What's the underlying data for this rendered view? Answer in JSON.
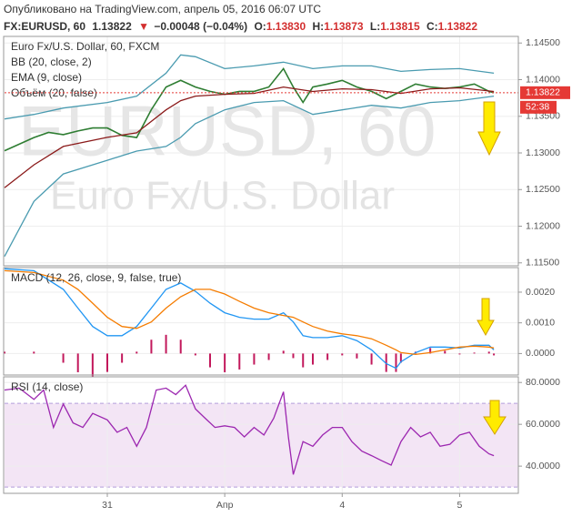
{
  "header": {
    "published": "Опубликовано на TradingView.com, апрель 05, 2016 06:07 UTC",
    "symbol": "FX:EURUSD, 60",
    "last": "1.13822",
    "change": "−0.00048 (−0.04%)",
    "ohlc": [
      {
        "label": "O:",
        "value": "1.13830"
      },
      {
        "label": "H:",
        "value": "1.13873"
      },
      {
        "label": "L:",
        "value": "1.13815"
      },
      {
        "label": "C:",
        "value": "1.13822"
      }
    ]
  },
  "chart_data": [
    {
      "type": "line",
      "title": "Euro Fx/U.S. Dollar, 60, FXCM",
      "indicators": [
        "BB (20, close, 2)",
        "EMA (9, close)",
        "Объём (20, false)"
      ],
      "watermark": [
        "EURUSD, 60",
        "Euro Fx/U.S. Dollar"
      ],
      "countdown": "52:38",
      "xlim": [
        -21,
        84
      ],
      "ylim": [
        1.1146,
        1.1459
      ],
      "yticks": [
        {
          "value": 1.145,
          "label": "1.14500"
        },
        {
          "value": 1.14,
          "label": "1.14000"
        },
        {
          "value": 1.135,
          "label": "1.13500"
        },
        {
          "value": 1.13,
          "label": "1.13000"
        },
        {
          "value": 1.125,
          "label": "1.12500"
        },
        {
          "value": 1.12,
          "label": "1.12000"
        },
        {
          "value": 1.115,
          "label": "1.11500"
        }
      ],
      "grid": true,
      "series": [
        {
          "kind": "line",
          "color": "#2e7d32",
          "x": [
            -21,
            -15,
            -12,
            -9,
            -6,
            -3,
            0,
            3,
            6,
            9,
            12,
            15,
            18,
            21,
            24,
            27,
            30,
            33,
            36,
            38,
            40,
            42,
            45,
            48,
            51,
            54,
            57,
            60,
            63,
            66,
            69,
            72,
            75,
            78,
            79
          ],
          "values": [
            1.1303,
            1.1321,
            1.1328,
            1.1325,
            1.133,
            1.1334,
            1.1334,
            1.1324,
            1.1321,
            1.1359,
            1.139,
            1.1399,
            1.139,
            1.1384,
            1.138,
            1.1384,
            1.1384,
            1.139,
            1.1415,
            1.139,
            1.1369,
            1.139,
            1.1394,
            1.1399,
            1.139,
            1.1384,
            1.1374,
            1.1384,
            1.1394,
            1.139,
            1.1388,
            1.139,
            1.1394,
            1.1384,
            1.13822
          ]
        },
        {
          "kind": "line",
          "color": "#4a9bb0",
          "x": [
            -21,
            -15,
            -9,
            0,
            6,
            12,
            15,
            18,
            24,
            30,
            36,
            42,
            48,
            54,
            60,
            66,
            72,
            79
          ],
          "values": [
            1.13463,
            1.13525,
            1.13613,
            1.13688,
            1.13775,
            1.14088,
            1.14338,
            1.14313,
            1.1415,
            1.14188,
            1.14238,
            1.1415,
            1.14188,
            1.14188,
            1.14113,
            1.14138,
            1.1415,
            1.14088
          ]
        },
        {
          "kind": "line",
          "color": "#4a9bb0",
          "x": [
            -21,
            -15,
            -9,
            0,
            6,
            12,
            15,
            18,
            24,
            30,
            36,
            42,
            48,
            54,
            60,
            66,
            72,
            79
          ],
          "values": [
            1.11588,
            1.12338,
            1.12713,
            1.129,
            1.13025,
            1.13088,
            1.13213,
            1.134,
            1.13588,
            1.13688,
            1.13713,
            1.13525,
            1.13588,
            1.1365,
            1.13613,
            1.13688,
            1.13713,
            1.13775
          ]
        },
        {
          "kind": "line",
          "color": "#8b1a1a",
          "x": [
            -21,
            -15,
            -9,
            0,
            6,
            12,
            15,
            18,
            24,
            30,
            36,
            42,
            48,
            54,
            60,
            66,
            72,
            79
          ],
          "values": [
            1.12525,
            1.12838,
            1.13088,
            1.13213,
            1.13275,
            1.13588,
            1.13713,
            1.13775,
            1.138,
            1.13813,
            1.139,
            1.13838,
            1.13875,
            1.13863,
            1.13813,
            1.13875,
            1.13888,
            1.13838
          ]
        }
      ]
    },
    {
      "type": "line",
      "title": "MACD (12, 26, close, 9, false, true)",
      "xlim": [
        -21,
        84
      ],
      "ylim": [
        -0.0007,
        0.0028
      ],
      "yticks": [
        {
          "value": 0.002,
          "label": "0.0020"
        },
        {
          "value": 0.001,
          "label": "0.0010"
        },
        {
          "value": 0,
          "label": "0.0000"
        }
      ],
      "grid": true,
      "x": [
        -21,
        -15,
        -9,
        -6,
        -3,
        0,
        3,
        6,
        9,
        12,
        15,
        18,
        21,
        24,
        27,
        30,
        33,
        36,
        38,
        40,
        42,
        45,
        48,
        51,
        54,
        57,
        59,
        60,
        63,
        66,
        69,
        72,
        75,
        78,
        79
      ],
      "series": [
        {
          "kind": "histogram",
          "color": "#c2185b",
          "values": [
            6e-05,
            6e-05,
            -0.0003,
            -0.00061,
            -0.00076,
            -0.0006,
            -0.0003,
            6e-05,
            0.00045,
            0.00061,
            0.00045,
            -6e-05,
            -0.00045,
            -0.00061,
            -0.00052,
            -0.00036,
            -0.00021,
            9e-05,
            -0.00015,
            -0.00045,
            -0.00036,
            -0.00021,
            -6e-05,
            -0.00016,
            -0.00036,
            -0.0006,
            -0.0006,
            -0.0003,
            6e-05,
            0.00018,
            9e-05,
            -3e-05,
            3e-05,
            6e-05,
            -6e-05
          ]
        },
        {
          "kind": "line",
          "color": "#2196f3",
          "values": [
            0.00276,
            0.0027,
            0.00209,
            0.00148,
            0.00088,
            0.00058,
            0.00058,
            0.00088,
            0.00148,
            0.00209,
            0.0023,
            0.00203,
            0.00164,
            0.00133,
            0.00118,
            0.00112,
            0.00112,
            0.00133,
            0.00103,
            0.00058,
            0.00052,
            0.00052,
            0.00058,
            0.00042,
            0.00012,
            -0.00033,
            -0.00048,
            -0.00027,
            3e-05,
            0.00021,
            0.00021,
            0.00018,
            0.00027,
            0.00027,
            0.00012
          ]
        },
        {
          "kind": "line",
          "color": "#f57c00",
          "values": [
            0.0027,
            0.00264,
            0.00239,
            0.00209,
            0.00164,
            0.00118,
            0.00088,
            0.00082,
            0.00103,
            0.00148,
            0.00185,
            0.00209,
            0.00209,
            0.00194,
            0.0017,
            0.00148,
            0.00133,
            0.00124,
            0.00118,
            0.00103,
            0.00088,
            0.00073,
            0.00064,
            0.00058,
            0.00048,
            0.00027,
            0.00012,
            3e-05,
            -3e-05,
            3e-05,
            0.00012,
            0.00021,
            0.00024,
            0.00021,
            0.00018
          ]
        }
      ]
    },
    {
      "type": "line",
      "title": "RSI (14, close)",
      "xlim": [
        -21,
        84
      ],
      "ylim": [
        27,
        82.7
      ],
      "yticks": [
        {
          "value": 80,
          "label": "80.0000"
        },
        {
          "value": 60,
          "label": "60.0000"
        },
        {
          "value": 40,
          "label": "40.0000"
        }
      ],
      "xticks": [
        {
          "value": 0,
          "label": "31"
        },
        {
          "value": 24,
          "label": "Апр"
        },
        {
          "value": 48,
          "label": "4"
        },
        {
          "value": 72,
          "label": "5"
        }
      ],
      "grid": true,
      "band": [
        30,
        70
      ],
      "band_color": "#f3e5f5",
      "x": [
        -21,
        -18,
        -15,
        -13,
        -11,
        -9,
        -7,
        -5,
        -3,
        0,
        2,
        4,
        6,
        8,
        10,
        12,
        14,
        16,
        18,
        20,
        22,
        24,
        26,
        28,
        30,
        32,
        34,
        36,
        37,
        38,
        40,
        42,
        44,
        46,
        48,
        50,
        52,
        54,
        56,
        58,
        60,
        62,
        64,
        66,
        68,
        70,
        72,
        74,
        76,
        78,
        79
      ],
      "series": [
        {
          "kind": "line",
          "color": "#9c27b0",
          "values": [
            76.4,
            77.3,
            71.9,
            76.4,
            58.5,
            69.7,
            60.7,
            58.5,
            65.2,
            62.1,
            56.2,
            58.5,
            49.5,
            58.5,
            76.4,
            77.3,
            74.2,
            78.7,
            67.4,
            62.9,
            58.5,
            59.3,
            58.5,
            54.0,
            58.5,
            54.9,
            62.9,
            75.5,
            54.0,
            36.0,
            51.7,
            49.5,
            54.9,
            58.5,
            58.5,
            51.7,
            47.2,
            45.0,
            42.7,
            40.5,
            51.7,
            58.5,
            54.0,
            56.2,
            49.5,
            50.4,
            54.9,
            56.2,
            49.5,
            45.9,
            45.0
          ]
        }
      ]
    }
  ]
}
